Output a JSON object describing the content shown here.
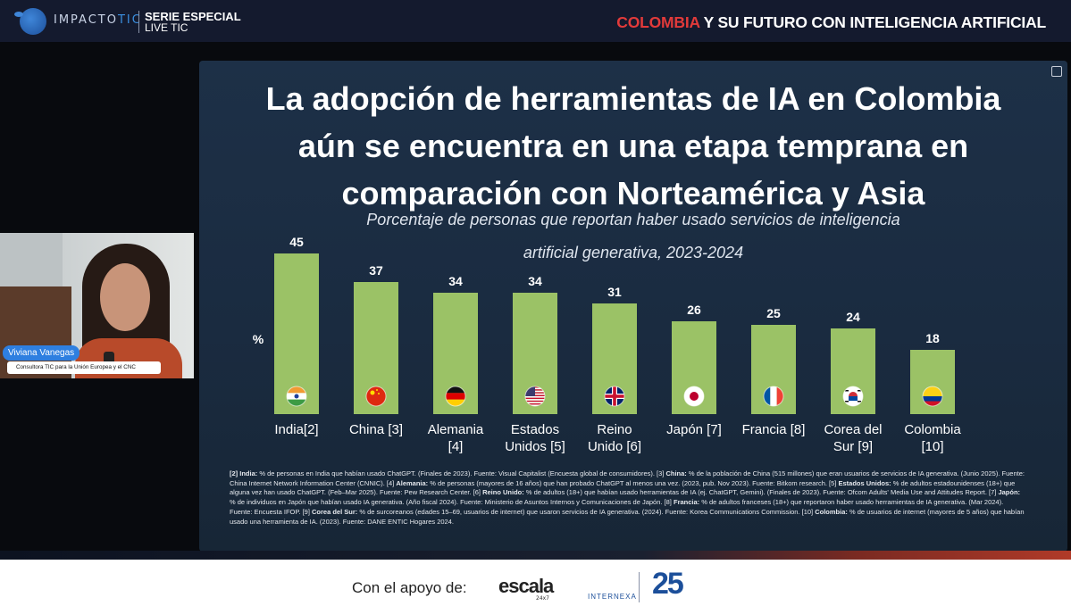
{
  "header": {
    "brand_a": "IMPACTO",
    "brand_b": "TIC",
    "series_line1": "SERIE ESPECIAL",
    "series_line2": "LIVE TIC",
    "title_highlight": "COLOMBIA",
    "title_rest": " Y SU FUTURO CON INTELIGENCIA ARTIFICIAL"
  },
  "slide": {
    "title_lines": [
      "La adopción de herramientas de IA en Colombia",
      "aún se encuentra en una etapa temprana en",
      "comparación con Norteamérica y Asia"
    ],
    "subtitle_lines": [
      "Porcentaje de personas que reportan haber usado servicios de inteligencia",
      "artificial generativa, 2023-2024"
    ],
    "footnotes": [
      {
        "b": "[2] India:",
        "t": " % de personas en India que habían usado ChatGPT. (Finales de 2023). Fuente: Visual Capitalist (Encuesta global de consumidores). [3] "
      },
      {
        "b": "China:",
        "t": " % de la población de China (515 millones) que eran usuarios de servicios de IA generativa. (Junio 2025). Fuente: China Internet Network Information Center (CNNIC). [4] "
      },
      {
        "b": "Alemania:",
        "t": " % de personas (mayores de 16 años) que han probado ChatGPT al menos una vez. (2023, pub. Nov 2023). Fuente: Bitkom research. [5] "
      },
      {
        "b": "Estados Unidos:",
        "t": " % de adultos estadounidenses (18+) que alguna vez han usado ChatGPT. (Feb–Mar 2025). Fuente: Pew Research Center. [6] "
      },
      {
        "b": "Reino Unido:",
        "t": " % de adultos (18+) que habían usado herramientas de IA (ej. ChatGPT, Gemini). (Finales de 2023). Fuente: Ofcom Adults' Media Use and Attitudes Report. [7] "
      },
      {
        "b": "Japón:",
        "t": " % de individuos en Japón que habían usado IA generativa. (Año fiscal 2024). Fuente: Ministerio de Asuntos Internos y Comunicaciones de Japón. [8] "
      },
      {
        "b": "Francia:",
        "t": " % de adultos franceses (18+) que reportaron haber usado herramientas de IA generativa. (Mar 2024). Fuente: Encuesta IFOP. [9] "
      },
      {
        "b": "Corea del Sur:",
        "t": " % de surcoreanos (edades 15–69, usuarios de internet) que usaron servicios de IA generativa. (2024). Fuente: Korea Communications Commission. [10] "
      },
      {
        "b": "Colombia:",
        "t": " % de usuarios de internet (mayores de 5 años) que habían usado una herramienta de IA. (2023). Fuente: DANE ENTIC Hogares 2024."
      }
    ]
  },
  "chart_data": {
    "type": "bar",
    "title": "Porcentaje de personas que reportan haber usado servicios de inteligencia artificial generativa, 2023-2024",
    "ylabel": "%",
    "xlabel": "",
    "ylim": [
      0,
      50
    ],
    "grid": false,
    "bar_color": "#9bc266",
    "categories": [
      [
        "India[2]"
      ],
      [
        "China [3]"
      ],
      [
        "Alemania",
        "[4]"
      ],
      [
        "Estados",
        "Unidos [5]"
      ],
      [
        "Reino",
        "Unido [6]"
      ],
      [
        "Japón [7]"
      ],
      [
        "Francia [8]"
      ],
      [
        "Corea del",
        "Sur [9]"
      ],
      [
        "Colombia",
        "[10]"
      ]
    ],
    "values": [
      45,
      37,
      34,
      34,
      31,
      26,
      25,
      24,
      18
    ],
    "flags": [
      "india-flag-icon",
      "china-flag-icon",
      "germany-flag-icon",
      "usa-flag-icon",
      "uk-flag-icon",
      "japan-flag-icon",
      "france-flag-icon",
      "south-korea-flag-icon",
      "colombia-flag-icon"
    ]
  },
  "presenter": {
    "name": "Viviana Vanegas",
    "role": "Consultora TIC para la Unión Europea y el CNC"
  },
  "footer": {
    "support_text": "Con el apoyo de:",
    "escala": "escala",
    "escala_sub": "24x7",
    "internexa": "INTERNEXA",
    "anniversary": "25"
  }
}
